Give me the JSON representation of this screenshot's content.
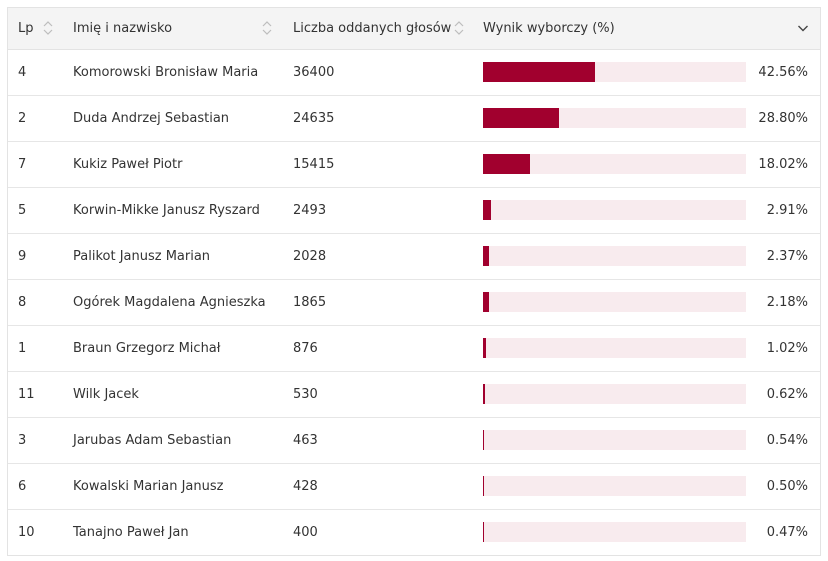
{
  "header": {
    "lp": "Lp",
    "name": "Imię i nazwisko",
    "votes": "Liczba oddanych głosów",
    "result": "Wynik wyborczy (%)"
  },
  "colors": {
    "bar": "#a1002e",
    "track": "#f8ebee"
  },
  "rows": [
    {
      "lp": "4",
      "name": "Komorowski Bronisław Maria",
      "votes": "36400",
      "pct_label": "42.56%",
      "pct": 42.56
    },
    {
      "lp": "2",
      "name": "Duda Andrzej Sebastian",
      "votes": "24635",
      "pct_label": "28.80%",
      "pct": 28.8
    },
    {
      "lp": "7",
      "name": "Kukiz Paweł Piotr",
      "votes": "15415",
      "pct_label": "18.02%",
      "pct": 18.02
    },
    {
      "lp": "5",
      "name": "Korwin-Mikke Janusz Ryszard",
      "votes": "2493",
      "pct_label": "2.91%",
      "pct": 2.91
    },
    {
      "lp": "9",
      "name": "Palikot Janusz Marian",
      "votes": "2028",
      "pct_label": "2.37%",
      "pct": 2.37
    },
    {
      "lp": "8",
      "name": "Ogórek Magdalena Agnieszka",
      "votes": "1865",
      "pct_label": "2.18%",
      "pct": 2.18
    },
    {
      "lp": "1",
      "name": "Braun Grzegorz Michał",
      "votes": "876",
      "pct_label": "1.02%",
      "pct": 1.02
    },
    {
      "lp": "11",
      "name": "Wilk Jacek",
      "votes": "530",
      "pct_label": "0.62%",
      "pct": 0.62
    },
    {
      "lp": "3",
      "name": "Jarubas Adam Sebastian",
      "votes": "463",
      "pct_label": "0.54%",
      "pct": 0.54
    },
    {
      "lp": "6",
      "name": "Kowalski Marian Janusz",
      "votes": "428",
      "pct_label": "0.50%",
      "pct": 0.5
    },
    {
      "lp": "10",
      "name": "Tanajno Paweł Jan",
      "votes": "400",
      "pct_label": "0.47%",
      "pct": 0.47
    }
  ]
}
